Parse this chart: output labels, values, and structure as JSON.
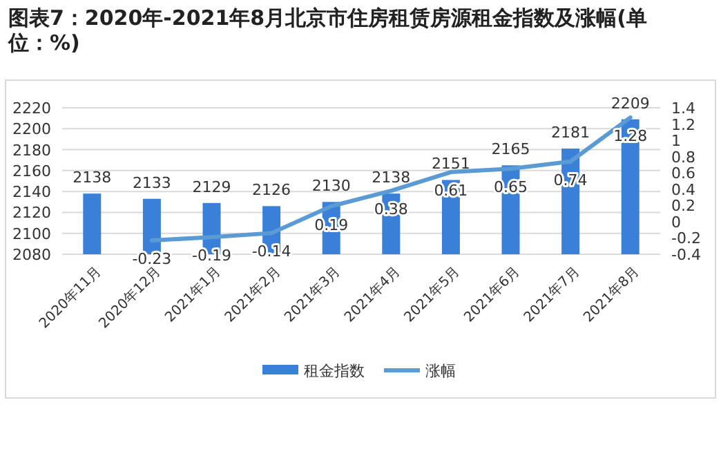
{
  "chart_data": {
    "type": "bar",
    "title": "图表7：2020年-2021年8月北京市住房租赁房源租金指数及涨幅(单位：%)",
    "categories": [
      "2020年11月",
      "2020年12月",
      "2021年1月",
      "2021年2月",
      "2021年3月",
      "2021年4月",
      "2021年5月",
      "2021年6月",
      "2021年7月",
      "2021年8月"
    ],
    "series": [
      {
        "name": "租金指数",
        "color": "#3a7fd8",
        "values": [
          2138,
          2133,
          2129,
          2126,
          2130,
          2138,
          2151,
          2165,
          2181,
          2209
        ]
      },
      {
        "name": "涨幅",
        "type": "line",
        "axis": "y2",
        "color": "#5b9bd5",
        "values": [
          null,
          -0.23,
          -0.19,
          -0.14,
          0.19,
          0.38,
          0.61,
          0.65,
          0.74,
          1.28
        ]
      }
    ],
    "ylim": [
      2080,
      2220
    ],
    "yticks": [
      2080,
      2100,
      2120,
      2140,
      2160,
      2180,
      2200,
      2220
    ],
    "y2lim": [
      -0.4,
      1.4
    ],
    "y2ticks": [
      -0.4,
      -0.2,
      0,
      0.2,
      0.4,
      0.6,
      0.8,
      1,
      1.2,
      1.4
    ],
    "grid": "y",
    "legend": "bottom",
    "data_labels": true,
    "marker": "none"
  }
}
